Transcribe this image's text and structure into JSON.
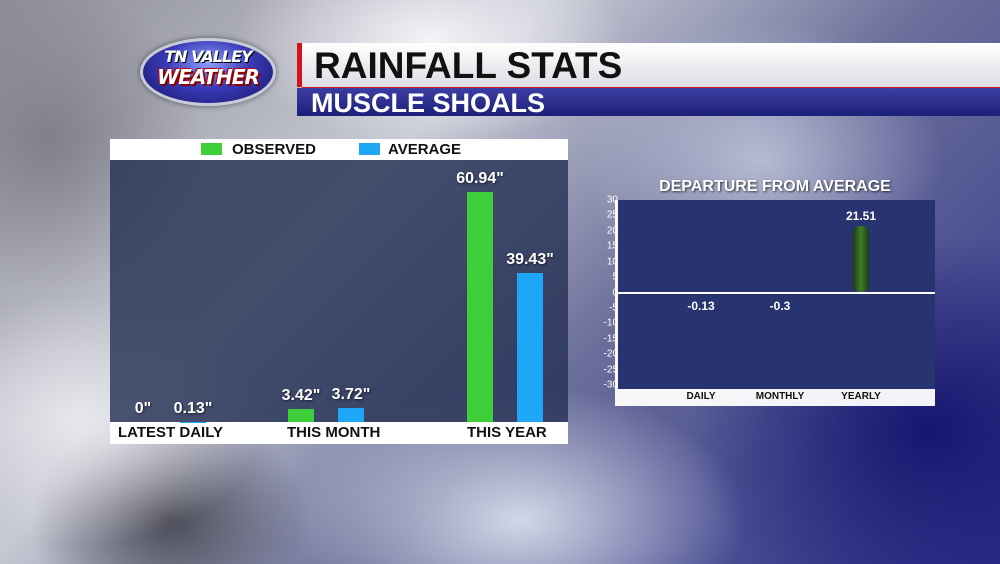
{
  "logo": {
    "line1": "TN VALLEY",
    "line2": "WEATHER"
  },
  "header": {
    "title": "RAINFALL STATS",
    "subtitle": "MUSCLE SHOALS"
  },
  "colors": {
    "observed": "#3dcf3a",
    "average": "#1ea7f5",
    "departure": "#3d7d2a",
    "title_accent": "#d4141c"
  },
  "chart_data": [
    {
      "type": "bar",
      "categories": [
        "LATEST DAILY",
        "THIS MONTH",
        "THIS YEAR"
      ],
      "series": [
        {
          "name": "OBSERVED",
          "values": [
            0,
            3.42,
            60.94
          ],
          "labels": [
            "0\"",
            "3.42\"",
            "60.94\""
          ]
        },
        {
          "name": "AVERAGE",
          "values": [
            0.13,
            3.72,
            39.43
          ],
          "labels": [
            "0.13\"",
            "3.72\"",
            "39.43\""
          ]
        }
      ],
      "legend": "top",
      "grid": false
    },
    {
      "type": "bar",
      "title": "DEPARTURE FROM AVERAGE",
      "categories": [
        "DAILY",
        "MONTHLY",
        "YEARLY"
      ],
      "values": [
        -0.13,
        -0.3,
        21.51
      ],
      "labels": [
        "-0.13",
        "-0.3",
        "21.51"
      ],
      "ylim": [
        -30,
        30
      ],
      "yticks": [
        "30",
        "25",
        "20",
        "15",
        "10",
        "5",
        "0",
        "-5",
        "-10",
        "-15",
        "-20",
        "-25",
        "-30"
      ],
      "grid": false
    }
  ]
}
